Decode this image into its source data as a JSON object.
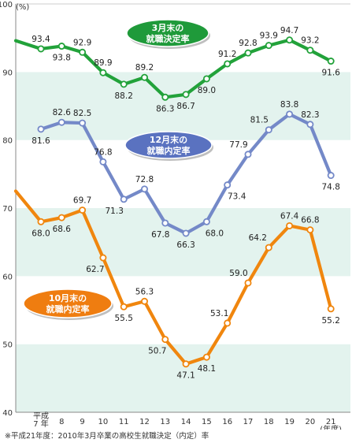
{
  "chart_data": {
    "type": "line",
    "unit_label": "(%)",
    "x_unit_label": "(年度)",
    "categories": [
      "平成7年",
      "8",
      "9",
      "10",
      "11",
      "12",
      "13",
      "14",
      "15",
      "16",
      "17",
      "18",
      "19",
      "20",
      "21"
    ],
    "ylim": [
      40,
      100
    ],
    "yticks": [
      40,
      50,
      60,
      70,
      80,
      90,
      100
    ],
    "band_color": "#e3f3ee",
    "series": [
      {
        "name": "3月末の就職決定率",
        "color": "#22a23a",
        "badge_color": "#1f9a3a",
        "values": [
          93.4,
          93.8,
          92.9,
          89.9,
          88.2,
          89.2,
          86.3,
          86.7,
          89.0,
          91.2,
          92.8,
          93.9,
          94.7,
          93.2,
          91.6
        ],
        "edge_start": 94.6
      },
      {
        "name": "12月末の就職内定率",
        "color": "#7489c8",
        "badge_color": "#5a72c0",
        "values": [
          81.6,
          82.6,
          82.5,
          76.8,
          71.3,
          72.8,
          67.8,
          66.3,
          68.0,
          73.4,
          77.9,
          81.5,
          83.8,
          82.3,
          74.8
        ]
      },
      {
        "name": "10月末の就職内定率",
        "color": "#f0860e",
        "badge_color": "#ef7d10",
        "values": [
          68.0,
          68.6,
          69.7,
          62.7,
          55.5,
          56.3,
          50.7,
          47.1,
          48.1,
          53.1,
          59.0,
          64.2,
          67.4,
          66.8,
          55.2
        ],
        "edge_start": 72.5
      }
    ]
  },
  "footnote": "※平成21年度：2010年3月卒業の高校生就職決定（内定）率"
}
